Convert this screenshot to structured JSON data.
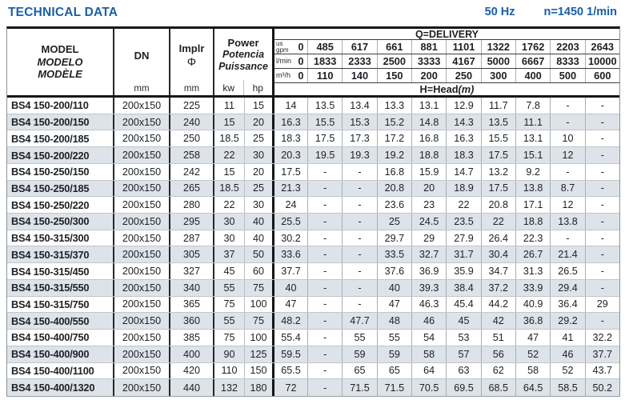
{
  "colors": {
    "accent_blue": "#1a5fa8",
    "band": "#dde3e9"
  },
  "page": {
    "title": "TECHNICAL DATA",
    "frequency": "50 Hz",
    "speed": "n=1450 1/min"
  },
  "table": {
    "model_header": {
      "line1": "MODEL",
      "line2": "MODELO",
      "line3": "MODÈLE"
    },
    "dn_header": {
      "label": "DN",
      "unit": "mm"
    },
    "impeller_header": {
      "label": "Implr",
      "symbol": "Φ",
      "unit": "mm"
    },
    "power_header": {
      "line1": "Power",
      "line2": "Potencia",
      "line3": "Puissance",
      "kw": "kw",
      "hp": "hp"
    },
    "delivery": {
      "title": "Q=DELIVERY",
      "head_label": "H=Head",
      "head_unit": "(m)",
      "unit_rows": [
        {
          "unit_top": "us",
          "unit": "gpm",
          "zero": "0",
          "values": [
            "485",
            "617",
            "661",
            "881",
            "1101",
            "1322",
            "1762",
            "2203",
            "2643"
          ]
        },
        {
          "unit_top": "",
          "unit": "l/min",
          "zero": "0",
          "values": [
            "1833",
            "2333",
            "2500",
            "3333",
            "4167",
            "5000",
            "6667",
            "8333",
            "10000"
          ]
        },
        {
          "unit_top": "",
          "unit": "m³/h",
          "zero": "0",
          "values": [
            "110",
            "140",
            "150",
            "200",
            "250",
            "300",
            "400",
            "500",
            "600"
          ]
        }
      ]
    },
    "rows": [
      {
        "model": "BS4 150-200/110",
        "dn": "200x150",
        "impeller": "225",
        "kw": "11",
        "hp": "15",
        "heads": [
          "14",
          "13.5",
          "13.4",
          "13.3",
          "13.1",
          "12.9",
          "11.7",
          "7.8",
          "-",
          "-"
        ]
      },
      {
        "model": "BS4 150-200/150",
        "dn": "200x150",
        "impeller": "240",
        "kw": "15",
        "hp": "20",
        "heads": [
          "16.3",
          "15.5",
          "15.3",
          "15.2",
          "14.8",
          "14.3",
          "13.5",
          "11.1",
          "-",
          "-"
        ]
      },
      {
        "model": "BS4 150-200/185",
        "dn": "200x150",
        "impeller": "250",
        "kw": "18.5",
        "hp": "25",
        "heads": [
          "18.3",
          "17.5",
          "17.3",
          "17.2",
          "16.8",
          "16.3",
          "15.5",
          "13.1",
          "10",
          "-"
        ]
      },
      {
        "model": "BS4 150-200/220",
        "dn": "200x150",
        "impeller": "258",
        "kw": "22",
        "hp": "30",
        "heads": [
          "20.3",
          "19.5",
          "19.3",
          "19.2",
          "18.8",
          "18.3",
          "17.5",
          "15.1",
          "12",
          "-"
        ]
      },
      {
        "model": "BS4 150-250/150",
        "dn": "200x150",
        "impeller": "242",
        "kw": "15",
        "hp": "20",
        "heads": [
          "17.5",
          "-",
          "-",
          "16.8",
          "15.9",
          "14.7",
          "13.2",
          "9.2",
          "-",
          "-"
        ]
      },
      {
        "model": "BS4 150-250/185",
        "dn": "200x150",
        "impeller": "265",
        "kw": "18.5",
        "hp": "25",
        "heads": [
          "21.3",
          "-",
          "-",
          "20.8",
          "20",
          "18.9",
          "17.5",
          "13.8",
          "8.7",
          "-"
        ]
      },
      {
        "model": "BS4 150-250/220",
        "dn": "200x150",
        "impeller": "280",
        "kw": "22",
        "hp": "30",
        "heads": [
          "24",
          "-",
          "-",
          "23.6",
          "23",
          "22",
          "20.8",
          "17.1",
          "12",
          "-"
        ]
      },
      {
        "model": "BS4 150-250/300",
        "dn": "200x150",
        "impeller": "295",
        "kw": "30",
        "hp": "40",
        "heads": [
          "25.5",
          "-",
          "-",
          "25",
          "24.5",
          "23.5",
          "22",
          "18.8",
          "13.8",
          "-"
        ]
      },
      {
        "model": "BS4 150-315/300",
        "dn": "200x150",
        "impeller": "287",
        "kw": "30",
        "hp": "40",
        "heads": [
          "30.2",
          "-",
          "-",
          "29.7",
          "29",
          "27.9",
          "26.4",
          "22.3",
          "-",
          "-"
        ]
      },
      {
        "model": "BS4 150-315/370",
        "dn": "200x150",
        "impeller": "305",
        "kw": "37",
        "hp": "50",
        "heads": [
          "33.6",
          "-",
          "-",
          "33.5",
          "32.7",
          "31.7",
          "30.4",
          "26.7",
          "21.4",
          "-"
        ]
      },
      {
        "model": "BS4 150-315/450",
        "dn": "200x150",
        "impeller": "327",
        "kw": "45",
        "hp": "60",
        "heads": [
          "37.7",
          "-",
          "-",
          "37.6",
          "36.9",
          "35.9",
          "34.7",
          "31.3",
          "26.5",
          "-"
        ]
      },
      {
        "model": "BS4 150-315/550",
        "dn": "200x150",
        "impeller": "340",
        "kw": "55",
        "hp": "75",
        "heads": [
          "40",
          "-",
          "-",
          "40",
          "39.3",
          "38.4",
          "37.2",
          "33.9",
          "29.4",
          "-"
        ]
      },
      {
        "model": "BS4 150-315/750",
        "dn": "200x150",
        "impeller": "365",
        "kw": "75",
        "hp": "100",
        "heads": [
          "47",
          "-",
          "-",
          "47",
          "46.3",
          "45.4",
          "44.2",
          "40.9",
          "36.4",
          "29"
        ]
      },
      {
        "model": "BS4 150-400/550",
        "dn": "200x150",
        "impeller": "360",
        "kw": "55",
        "hp": "75",
        "heads": [
          "48.2",
          "-",
          "47.7",
          "48",
          "46",
          "45",
          "42",
          "36.8",
          "29.2",
          "-"
        ]
      },
      {
        "model": "BS4 150-400/750",
        "dn": "200x150",
        "impeller": "385",
        "kw": "75",
        "hp": "100",
        "heads": [
          "55.4",
          "-",
          "55",
          "55",
          "54",
          "53",
          "51",
          "47",
          "41",
          "32.2"
        ]
      },
      {
        "model": "BS4 150-400/900",
        "dn": "200x150",
        "impeller": "400",
        "kw": "90",
        "hp": "125",
        "heads": [
          "59.5",
          "-",
          "59",
          "59",
          "58",
          "57",
          "56",
          "52",
          "46",
          "37.7"
        ]
      },
      {
        "model": "BS4 150-400/1100",
        "dn": "200x150",
        "impeller": "420",
        "kw": "110",
        "hp": "150",
        "heads": [
          "65.5",
          "-",
          "65",
          "65",
          "64",
          "63",
          "62",
          "58",
          "52",
          "43.7"
        ]
      },
      {
        "model": "BS4 150-400/1320",
        "dn": "200x150",
        "impeller": "440",
        "kw": "132",
        "hp": "180",
        "heads": [
          "72",
          "-",
          "71.5",
          "71.5",
          "70.5",
          "69.5",
          "68.5",
          "64.5",
          "58.5",
          "50.2"
        ]
      }
    ]
  }
}
